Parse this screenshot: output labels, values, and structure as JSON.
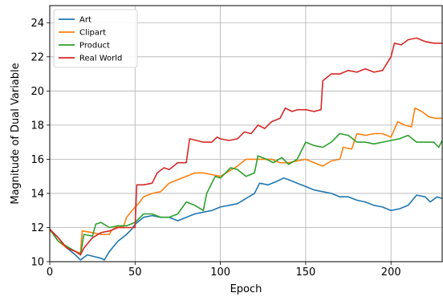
{
  "chart_data": {
    "type": "line",
    "title": "",
    "xlabel": "Epoch",
    "ylabel": "Magnitude of Dual Variable",
    "xlim": [
      0,
      230
    ],
    "ylim": [
      10,
      25
    ],
    "xticks": [
      0,
      50,
      100,
      150,
      200
    ],
    "yticks": [
      10,
      12,
      14,
      16,
      18,
      20,
      22,
      24
    ],
    "grid": true,
    "legend_position": "top-left",
    "series": [
      {
        "name": "Art",
        "color": "#1f77b4",
        "points": [
          [
            0,
            11.9
          ],
          [
            5,
            11.4
          ],
          [
            10,
            10.8
          ],
          [
            15,
            10.4
          ],
          [
            18,
            10.1
          ],
          [
            22,
            10.4
          ],
          [
            26,
            10.3
          ],
          [
            30,
            10.2
          ],
          [
            32,
            10.1
          ],
          [
            35,
            10.6
          ],
          [
            40,
            11.2
          ],
          [
            45,
            11.6
          ],
          [
            48,
            11.9
          ],
          [
            50,
            12.2
          ],
          [
            55,
            12.6
          ],
          [
            60,
            12.7
          ],
          [
            65,
            12.6
          ],
          [
            70,
            12.6
          ],
          [
            75,
            12.4
          ],
          [
            80,
            12.6
          ],
          [
            85,
            12.8
          ],
          [
            90,
            12.9
          ],
          [
            95,
            13.0
          ],
          [
            100,
            13.2
          ],
          [
            105,
            13.3
          ],
          [
            110,
            13.4
          ],
          [
            115,
            13.7
          ],
          [
            120,
            14.0
          ],
          [
            123,
            14.6
          ],
          [
            128,
            14.5
          ],
          [
            133,
            14.7
          ],
          [
            137,
            14.9
          ],
          [
            140,
            14.8
          ],
          [
            145,
            14.6
          ],
          [
            150,
            14.4
          ],
          [
            155,
            14.2
          ],
          [
            160,
            14.1
          ],
          [
            165,
            14.0
          ],
          [
            170,
            13.8
          ],
          [
            175,
            13.8
          ],
          [
            180,
            13.6
          ],
          [
            185,
            13.5
          ],
          [
            190,
            13.3
          ],
          [
            195,
            13.2
          ],
          [
            200,
            13.0
          ],
          [
            205,
            13.1
          ],
          [
            210,
            13.3
          ],
          [
            215,
            13.9
          ],
          [
            220,
            13.8
          ],
          [
            223,
            13.5
          ],
          [
            227,
            13.8
          ],
          [
            230,
            13.7
          ]
        ]
      },
      {
        "name": "Clipart",
        "color": "#ff7f0e",
        "points": [
          [
            0,
            11.9
          ],
          [
            5,
            11.2
          ],
          [
            10,
            10.8
          ],
          [
            15,
            10.6
          ],
          [
            18,
            10.5
          ],
          [
            19,
            11.8
          ],
          [
            25,
            11.7
          ],
          [
            30,
            11.6
          ],
          [
            35,
            11.6
          ],
          [
            36,
            11.8
          ],
          [
            40,
            12.1
          ],
          [
            43,
            12.0
          ],
          [
            45,
            12.6
          ],
          [
            50,
            13.2
          ],
          [
            52,
            13.4
          ],
          [
            55,
            13.8
          ],
          [
            60,
            14.0
          ],
          [
            65,
            14.1
          ],
          [
            70,
            14.6
          ],
          [
            75,
            14.8
          ],
          [
            80,
            15.0
          ],
          [
            85,
            15.2
          ],
          [
            90,
            15.2
          ],
          [
            95,
            15.1
          ],
          [
            100,
            15.0
          ],
          [
            105,
            15.3
          ],
          [
            110,
            15.6
          ],
          [
            115,
            16.0
          ],
          [
            120,
            16.0
          ],
          [
            125,
            16.0
          ],
          [
            130,
            16.0
          ],
          [
            135,
            15.8
          ],
          [
            140,
            15.8
          ],
          [
            145,
            15.9
          ],
          [
            150,
            16.0
          ],
          [
            155,
            15.8
          ],
          [
            160,
            15.6
          ],
          [
            165,
            15.9
          ],
          [
            170,
            16.0
          ],
          [
            172,
            16.7
          ],
          [
            177,
            16.6
          ],
          [
            180,
            17.5
          ],
          [
            185,
            17.4
          ],
          [
            190,
            17.5
          ],
          [
            195,
            17.5
          ],
          [
            200,
            17.3
          ],
          [
            204,
            18.2
          ],
          [
            208,
            18.0
          ],
          [
            212,
            17.9
          ],
          [
            214,
            19.0
          ],
          [
            218,
            18.8
          ],
          [
            222,
            18.5
          ],
          [
            226,
            18.4
          ],
          [
            230,
            18.4
          ]
        ]
      },
      {
        "name": "Product",
        "color": "#2ca02c",
        "points": [
          [
            0,
            11.9
          ],
          [
            5,
            11.2
          ],
          [
            10,
            10.9
          ],
          [
            15,
            10.6
          ],
          [
            18,
            10.4
          ],
          [
            20,
            11.6
          ],
          [
            25,
            11.5
          ],
          [
            27,
            12.2
          ],
          [
            30,
            12.3
          ],
          [
            35,
            12.0
          ],
          [
            40,
            12.1
          ],
          [
            45,
            12.1
          ],
          [
            50,
            12.3
          ],
          [
            55,
            12.8
          ],
          [
            60,
            12.8
          ],
          [
            65,
            12.6
          ],
          [
            70,
            12.6
          ],
          [
            75,
            12.8
          ],
          [
            80,
            13.5
          ],
          [
            85,
            13.3
          ],
          [
            90,
            13.0
          ],
          [
            92,
            14.0
          ],
          [
            97,
            15.0
          ],
          [
            100,
            14.9
          ],
          [
            103,
            15.2
          ],
          [
            106,
            15.5
          ],
          [
            110,
            15.4
          ],
          [
            115,
            15.0
          ],
          [
            120,
            15.2
          ],
          [
            122,
            16.2
          ],
          [
            127,
            16.0
          ],
          [
            131,
            15.8
          ],
          [
            136,
            16.1
          ],
          [
            140,
            15.7
          ],
          [
            145,
            16.0
          ],
          [
            150,
            17.0
          ],
          [
            155,
            16.8
          ],
          [
            160,
            16.7
          ],
          [
            165,
            17.0
          ],
          [
            170,
            17.5
          ],
          [
            175,
            17.4
          ],
          [
            180,
            17.0
          ],
          [
            185,
            17.0
          ],
          [
            190,
            16.9
          ],
          [
            195,
            17.0
          ],
          [
            200,
            17.1
          ],
          [
            205,
            17.2
          ],
          [
            210,
            17.4
          ],
          [
            215,
            17.0
          ],
          [
            220,
            17.0
          ],
          [
            225,
            17.0
          ],
          [
            228,
            16.7
          ],
          [
            230,
            17.1
          ]
        ]
      },
      {
        "name": "Real World",
        "color": "#d62728",
        "points": [
          [
            0,
            11.9
          ],
          [
            5,
            11.4
          ],
          [
            10,
            10.8
          ],
          [
            15,
            10.6
          ],
          [
            18,
            10.4
          ],
          [
            20,
            10.8
          ],
          [
            25,
            11.4
          ],
          [
            30,
            11.7
          ],
          [
            35,
            11.8
          ],
          [
            40,
            12.0
          ],
          [
            45,
            12.0
          ],
          [
            50,
            12.0
          ],
          [
            51,
            14.5
          ],
          [
            55,
            14.5
          ],
          [
            60,
            14.6
          ],
          [
            63,
            15.2
          ],
          [
            67,
            15.5
          ],
          [
            70,
            15.4
          ],
          [
            75,
            15.8
          ],
          [
            80,
            15.8
          ],
          [
            82,
            17.2
          ],
          [
            86,
            17.1
          ],
          [
            90,
            17.0
          ],
          [
            95,
            17.0
          ],
          [
            98,
            17.3
          ],
          [
            100,
            17.2
          ],
          [
            105,
            17.1
          ],
          [
            110,
            17.2
          ],
          [
            114,
            17.6
          ],
          [
            118,
            17.5
          ],
          [
            122,
            18.0
          ],
          [
            126,
            17.8
          ],
          [
            130,
            18.2
          ],
          [
            135,
            18.4
          ],
          [
            138,
            19.0
          ],
          [
            142,
            18.8
          ],
          [
            145,
            18.9
          ],
          [
            150,
            18.9
          ],
          [
            155,
            18.8
          ],
          [
            159,
            18.9
          ],
          [
            160,
            20.6
          ],
          [
            165,
            21.0
          ],
          [
            170,
            21.0
          ],
          [
            175,
            21.2
          ],
          [
            180,
            21.1
          ],
          [
            185,
            21.3
          ],
          [
            190,
            21.1
          ],
          [
            195,
            21.2
          ],
          [
            200,
            22.0
          ],
          [
            202,
            22.8
          ],
          [
            206,
            22.7
          ],
          [
            210,
            23.0
          ],
          [
            215,
            23.1
          ],
          [
            220,
            22.9
          ],
          [
            225,
            22.8
          ],
          [
            230,
            22.8
          ]
        ]
      }
    ]
  }
}
